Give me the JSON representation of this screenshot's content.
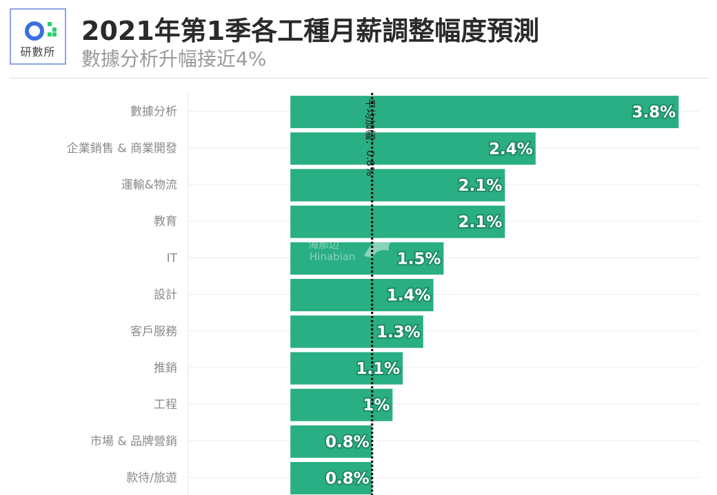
{
  "logo": {
    "text": "研數所"
  },
  "header": {
    "title": "2021年第1季各工種月薪調整幅度預測",
    "subtitle": "數據分析升幅接近4%"
  },
  "colors": {
    "bar": "#2aae84",
    "label_stroke": "#1f8a63",
    "avg_line": "#000000"
  },
  "watermark": {
    "top": "海那边",
    "bottom": "Hinabian"
  },
  "chart_data": {
    "type": "bar",
    "orientation": "horizontal",
    "categories": [
      "數據分析",
      "企業銷售 & 商業開發",
      "運輸&物流",
      "教育",
      "IT",
      "設計",
      "客戶服務",
      "推銷",
      "工程",
      "市場 & 品牌營銷",
      "款待/旅遊"
    ],
    "values": [
      3.8,
      2.4,
      2.1,
      2.1,
      1.5,
      1.4,
      1.3,
      1.1,
      1.0,
      0.8,
      0.8
    ],
    "value_labels": [
      "3.8%",
      "2.4%",
      "2.1%",
      "2.1%",
      "1.5%",
      "1.4%",
      "1.3%",
      "1.1%",
      "1%",
      "0.8%",
      "0.8%"
    ],
    "average": {
      "value": 0.8,
      "label": "平均加幅：0.8%"
    },
    "xlim": [
      -1.0,
      4.0
    ],
    "grid": true
  }
}
